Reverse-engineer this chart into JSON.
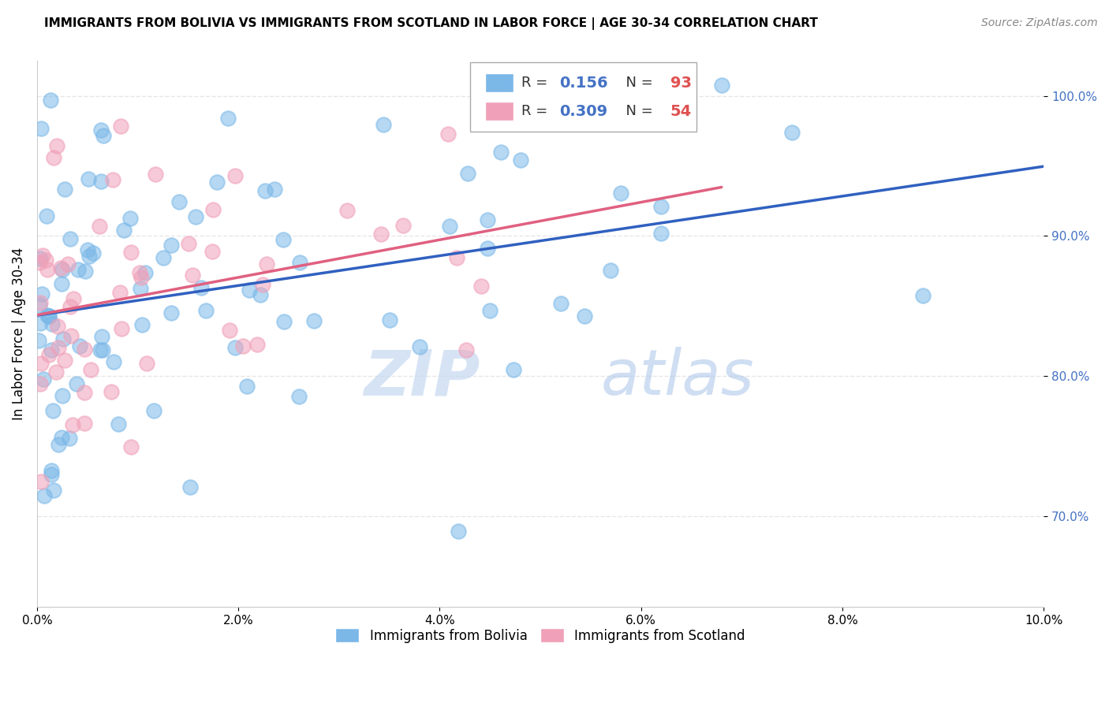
{
  "title": "IMMIGRANTS FROM BOLIVIA VS IMMIGRANTS FROM SCOTLAND IN LABOR FORCE | AGE 30-34 CORRELATION CHART",
  "source": "Source: ZipAtlas.com",
  "ylabel": "In Labor Force | Age 30-34",
  "xlim": [
    0.0,
    0.1
  ],
  "ylim": [
    0.635,
    1.025
  ],
  "xticks": [
    0.0,
    0.02,
    0.04,
    0.06,
    0.08,
    0.1
  ],
  "xtick_labels": [
    "0.0%",
    "2.0%",
    "4.0%",
    "6.0%",
    "8.0%",
    "10.0%"
  ],
  "yticks": [
    0.7,
    0.8,
    0.9,
    1.0
  ],
  "ytick_labels": [
    "70.0%",
    "80.0%",
    "90.0%",
    "100.0%"
  ],
  "bolivia_color": "#7bb8e8",
  "scotland_color": "#f0a0b8",
  "bolivia_line_color": "#3060c0",
  "scotland_line_color": "#e06080",
  "R_bolivia": 0.156,
  "N_bolivia": 93,
  "R_scotland": 0.309,
  "N_scotland": 54,
  "watermark_zip": "ZIP",
  "watermark_atlas": "atlas",
  "watermark_color_zip": "#c8d8ee",
  "watermark_color_atlas": "#b0c8e8",
  "grid_color": "#e0e0e0",
  "legend_R_color": "#4472c4",
  "legend_N_color": "#e05050",
  "title_fontsize": 11,
  "source_fontsize": 10,
  "ytick_color": "#4472c4"
}
